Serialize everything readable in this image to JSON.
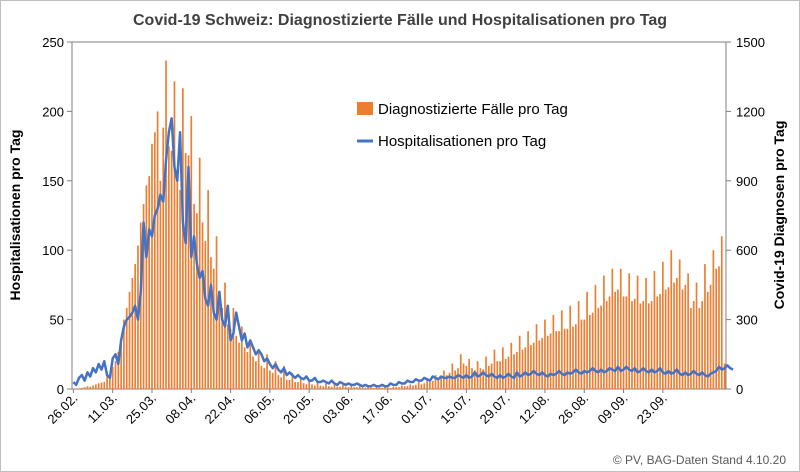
{
  "chart_data": {
    "type": "bar",
    "title": "Covid-19 Schweiz: Diagnostizierte Fälle und Hospitalisationen pro Tag",
    "ylabel_left": "Hospitalisationen  pro Tag",
    "ylabel_right": "Covid-19 Diagnosen pro Tag",
    "credit": "© PV, BAG-Daten Stand 4.10.20",
    "ylim_left": [
      0,
      250
    ],
    "ylim_right": [
      0,
      1500
    ],
    "yticks_left": [
      "0",
      "50",
      "100",
      "150",
      "200",
      "250"
    ],
    "yticks_right": [
      "0",
      "300",
      "600",
      "900",
      "1200",
      "1500"
    ],
    "xtick_labels": [
      "26.02.",
      "11.03.",
      "25.03.",
      "08.04.",
      "22.04.",
      "06.05.",
      "20.05.",
      "03.06.",
      "17.06.",
      "01.07.",
      "15.07.",
      "29.07.",
      "12.08.",
      "26.08.",
      "09.09.",
      "23.09."
    ],
    "x_start": "2020-02-26",
    "grid": false,
    "legend_position": "upper-center",
    "colors": {
      "bars": "#ED7D31",
      "line": "#4472C4",
      "axis": "#7F7F7F"
    },
    "series": [
      {
        "name": "Diagnostizierte Fälle pro Tag",
        "axis": "right",
        "values": [
          1,
          2,
          3,
          5,
          8,
          12,
          10,
          15,
          20,
          25,
          28,
          30,
          55,
          60,
          95,
          120,
          160,
          220,
          300,
          350,
          420,
          480,
          540,
          620,
          720,
          800,
          880,
          920,
          1060,
          1110,
          1200,
          900,
          1130,
          1420,
          1050,
          1030,
          1330,
          920,
          860,
          1300,
          1020,
          1010,
          1180,
          800,
          760,
          1000,
          720,
          640,
          860,
          570,
          520,
          660,
          400,
          350,
          460,
          280,
          260,
          350,
          230,
          200,
          270,
          180,
          160,
          200,
          140,
          120,
          170,
          100,
          90,
          150,
          80,
          70,
          120,
          60,
          50,
          100,
          40,
          40,
          70,
          30,
          30,
          50,
          25,
          20,
          35,
          20,
          15,
          30,
          15,
          12,
          25,
          12,
          10,
          20,
          10,
          10,
          18,
          10,
          8,
          15,
          8,
          8,
          12,
          6,
          6,
          10,
          6,
          5,
          10,
          5,
          5,
          8,
          5,
          5,
          10,
          8,
          8,
          15,
          12,
          12,
          20,
          15,
          18,
          30,
          20,
          25,
          40,
          30,
          35,
          60,
          45,
          50,
          80,
          60,
          70,
          110,
          80,
          90,
          150,
          110,
          100,
          130,
          90,
          80,
          120,
          90,
          85,
          140,
          100,
          110,
          170,
          120,
          120,
          180,
          130,
          140,
          200,
          150,
          160,
          230,
          170,
          180,
          250,
          190,
          200,
          280,
          210,
          220,
          300,
          230,
          240,
          320,
          250,
          250,
          340,
          260,
          260,
          360,
          270,
          280,
          380,
          300,
          300,
          420,
          320,
          330,
          450,
          350,
          360,
          490,
          380,
          400,
          520,
          420,
          430,
          520,
          400,
          400,
          500,
          380,
          390,
          490,
          370,
          380,
          480,
          370,
          380,
          510,
          400,
          410,
          550,
          430,
          440,
          600,
          460,
          480,
          560,
          430,
          450,
          500,
          350,
          380,
          460,
          350,
          380,
          540,
          420,
          450,
          600,
          520,
          530,
          660,
          110
        ]
      },
      {
        "name": "Hospitalisationen pro Tag",
        "axis": "left",
        "values": [
          5,
          3,
          8,
          10,
          6,
          12,
          9,
          15,
          12,
          18,
          14,
          20,
          10,
          8,
          22,
          25,
          18,
          35,
          45,
          50,
          52,
          55,
          60,
          50,
          70,
          120,
          95,
          115,
          110,
          125,
          130,
          140,
          135,
          165,
          185,
          195,
          160,
          150,
          185,
          120,
          105,
          160,
          95,
          110,
          90,
          80,
          85,
          65,
          60,
          75,
          55,
          50,
          70,
          50,
          45,
          60,
          35,
          40,
          55,
          45,
          35,
          40,
          30,
          35,
          30,
          25,
          28,
          25,
          20,
          22,
          18,
          15,
          18,
          14,
          12,
          15,
          10,
          12,
          10,
          8,
          10,
          8,
          7,
          9,
          6,
          6,
          8,
          5,
          5,
          6,
          5,
          4,
          6,
          4,
          3,
          5,
          4,
          3,
          4,
          3,
          3,
          4,
          3,
          2,
          3,
          2,
          2,
          3,
          2,
          2,
          3,
          2,
          2,
          4,
          3,
          3,
          5,
          4,
          4,
          6,
          5,
          5,
          7,
          6,
          6,
          8,
          7,
          6,
          9,
          8,
          7,
          9,
          8,
          8,
          9,
          8,
          8,
          10,
          9,
          8,
          10,
          8,
          9,
          12,
          9,
          10,
          12,
          10,
          9,
          11,
          9,
          8,
          10,
          8,
          9,
          11,
          9,
          8,
          12,
          9,
          10,
          12,
          10,
          11,
          13,
          11,
          10,
          12,
          10,
          9,
          11,
          10,
          11,
          13,
          11,
          10,
          12,
          11,
          12,
          14,
          12,
          11,
          13,
          12,
          13,
          15,
          13,
          12,
          14,
          12,
          13,
          15,
          14,
          13,
          16,
          13,
          14,
          16,
          14,
          13,
          15,
          12,
          13,
          15,
          13,
          12,
          14,
          12,
          13,
          15,
          12,
          11,
          13,
          11,
          12,
          14,
          11,
          10,
          12,
          10,
          11,
          13,
          11,
          10,
          12,
          10,
          9,
          11,
          12,
          13,
          16,
          14,
          15,
          17,
          15,
          14
        ]
      }
    ]
  }
}
